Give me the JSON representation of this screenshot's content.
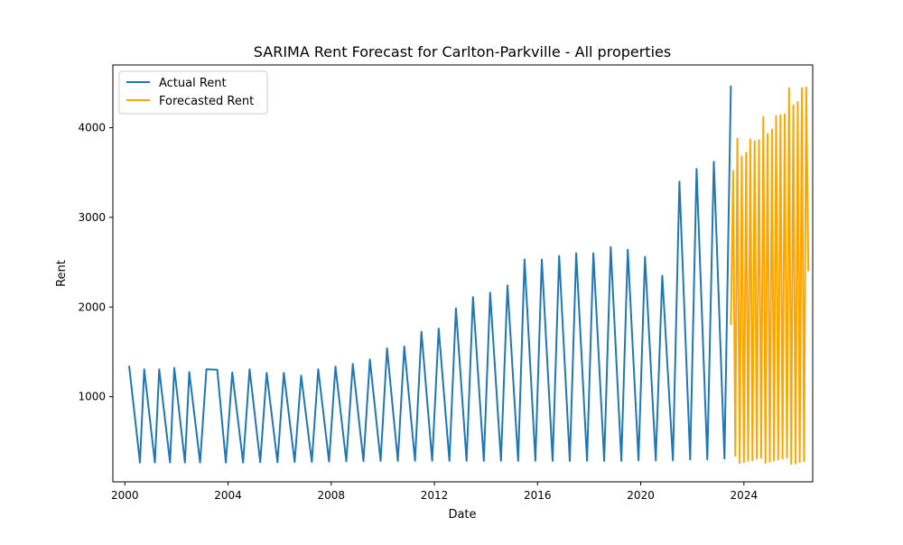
{
  "chart_data": {
    "type": "line",
    "title": "SARIMA Rent Forecast for Carlton-Parkville - All properties",
    "xlabel": "Date",
    "ylabel": "Rent",
    "xlim": [
      "1999-07-15",
      "2026-09-01"
    ],
    "ylim": [
      50,
      4700
    ],
    "x_ticks": [
      "2000-01-01",
      "2004-01-01",
      "2008-01-01",
      "2012-01-01",
      "2016-01-01",
      "2020-01-01",
      "2024-01-01"
    ],
    "x_tick_labels": [
      "2000",
      "2004",
      "2008",
      "2012",
      "2016",
      "2020",
      "2024"
    ],
    "y_ticks": [
      1000,
      2000,
      3000,
      4000
    ],
    "y_tick_labels": [
      "1000",
      "2000",
      "3000",
      "4000"
    ],
    "grid": false,
    "legend_position": "top-left",
    "series": [
      {
        "name": "Actual Rent",
        "color": "#1f77b4",
        "points": [
          [
            "2000-03-01",
            1345
          ],
          [
            "2000-08-01",
            265
          ],
          [
            "2000-10-01",
            1305
          ],
          [
            "2001-03-01",
            265
          ],
          [
            "2001-05-01",
            1305
          ],
          [
            "2001-10-01",
            265
          ],
          [
            "2001-12-01",
            1320
          ],
          [
            "2002-05-01",
            265
          ],
          [
            "2002-07-01",
            1275
          ],
          [
            "2002-12-01",
            265
          ],
          [
            "2003-03-01",
            1305
          ],
          [
            "2003-08-01",
            1300
          ],
          [
            "2003-12-01",
            265
          ],
          [
            "2004-03-01",
            1270
          ],
          [
            "2004-08-01",
            265
          ],
          [
            "2004-11-01",
            1305
          ],
          [
            "2005-04-01",
            268
          ],
          [
            "2005-07-01",
            1265
          ],
          [
            "2005-12-01",
            268
          ],
          [
            "2006-03-01",
            1265
          ],
          [
            "2006-08-01",
            270
          ],
          [
            "2006-11-01",
            1235
          ],
          [
            "2007-04-01",
            272
          ],
          [
            "2007-07-01",
            1305
          ],
          [
            "2007-12-01",
            275
          ],
          [
            "2008-03-01",
            1335
          ],
          [
            "2008-08-01",
            278
          ],
          [
            "2008-11-01",
            1365
          ],
          [
            "2009-04-01",
            280
          ],
          [
            "2009-07-01",
            1415
          ],
          [
            "2009-12-01",
            282
          ],
          [
            "2010-03-01",
            1540
          ],
          [
            "2010-08-01",
            284
          ],
          [
            "2010-11-01",
            1560
          ],
          [
            "2011-04-01",
            285
          ],
          [
            "2011-07-01",
            1725
          ],
          [
            "2011-12-01",
            285
          ],
          [
            "2012-03-01",
            1760
          ],
          [
            "2012-08-01",
            285
          ],
          [
            "2012-11-01",
            1985
          ],
          [
            "2013-04-01",
            285
          ],
          [
            "2013-07-01",
            2110
          ],
          [
            "2013-12-01",
            285
          ],
          [
            "2014-03-01",
            2160
          ],
          [
            "2014-08-01",
            285
          ],
          [
            "2014-11-01",
            2240
          ],
          [
            "2015-04-01",
            285
          ],
          [
            "2015-07-01",
            2530
          ],
          [
            "2015-12-01",
            285
          ],
          [
            "2016-03-01",
            2530
          ],
          [
            "2016-08-01",
            285
          ],
          [
            "2016-11-01",
            2570
          ],
          [
            "2017-04-01",
            285
          ],
          [
            "2017-07-01",
            2600
          ],
          [
            "2017-12-01",
            285
          ],
          [
            "2018-03-01",
            2600
          ],
          [
            "2018-08-01",
            285
          ],
          [
            "2018-11-01",
            2670
          ],
          [
            "2019-04-01",
            285
          ],
          [
            "2019-07-01",
            2640
          ],
          [
            "2019-12-01",
            290
          ],
          [
            "2020-03-01",
            2560
          ],
          [
            "2020-08-01",
            290
          ],
          [
            "2020-11-01",
            2350
          ],
          [
            "2021-04-01",
            290
          ],
          [
            "2021-07-01",
            3400
          ],
          [
            "2021-12-01",
            300
          ],
          [
            "2022-03-01",
            3540
          ],
          [
            "2022-08-01",
            300
          ],
          [
            "2022-11-01",
            3620
          ],
          [
            "2023-04-01",
            310
          ],
          [
            "2023-07-01",
            4470
          ]
        ]
      },
      {
        "name": "Forecasted Rent",
        "color": "#ffa500",
        "points": []
      }
    ]
  }
}
